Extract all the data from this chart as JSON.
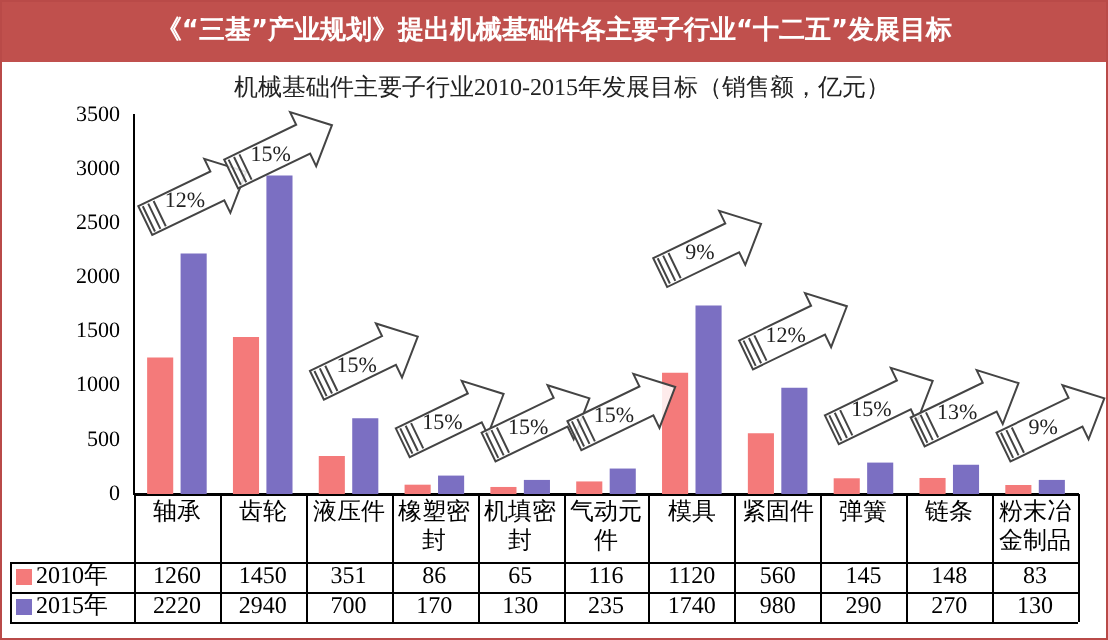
{
  "chart_data": {
    "type": "bar",
    "title": "《“三基”产业规划》提出机械基础件各主要子行业“十二五”发展目标",
    "subtitle": "机械基础件主要子行业2010-2015年发展目标（销售额，亿元）",
    "categories": [
      "轴承",
      "齿轮",
      "液压件",
      "橡塑密封",
      "机填密封",
      "气动元件",
      "模具",
      "紧固件",
      "弹簧",
      "链条",
      "粉末冶金制品"
    ],
    "series": [
      {
        "name": "2010年",
        "color": "#f47a7a",
        "values": [
          1260,
          1450,
          351,
          86,
          65,
          116,
          1120,
          560,
          145,
          148,
          83
        ]
      },
      {
        "name": "2015年",
        "color": "#7b6fc2",
        "values": [
          2220,
          2940,
          700,
          170,
          130,
          235,
          1740,
          980,
          290,
          270,
          130
        ]
      }
    ],
    "ylim": [
      0,
      3500
    ],
    "yticks": [
      0,
      500,
      1000,
      1500,
      2000,
      2500,
      3000,
      3500
    ],
    "grid": false,
    "legend": "bottom left",
    "data_labels": true,
    "annotations": [
      "12%",
      "15%",
      "15%",
      "15%",
      "15%",
      "15%",
      "9%",
      "12%",
      "15%",
      "13%",
      "9%"
    ]
  }
}
